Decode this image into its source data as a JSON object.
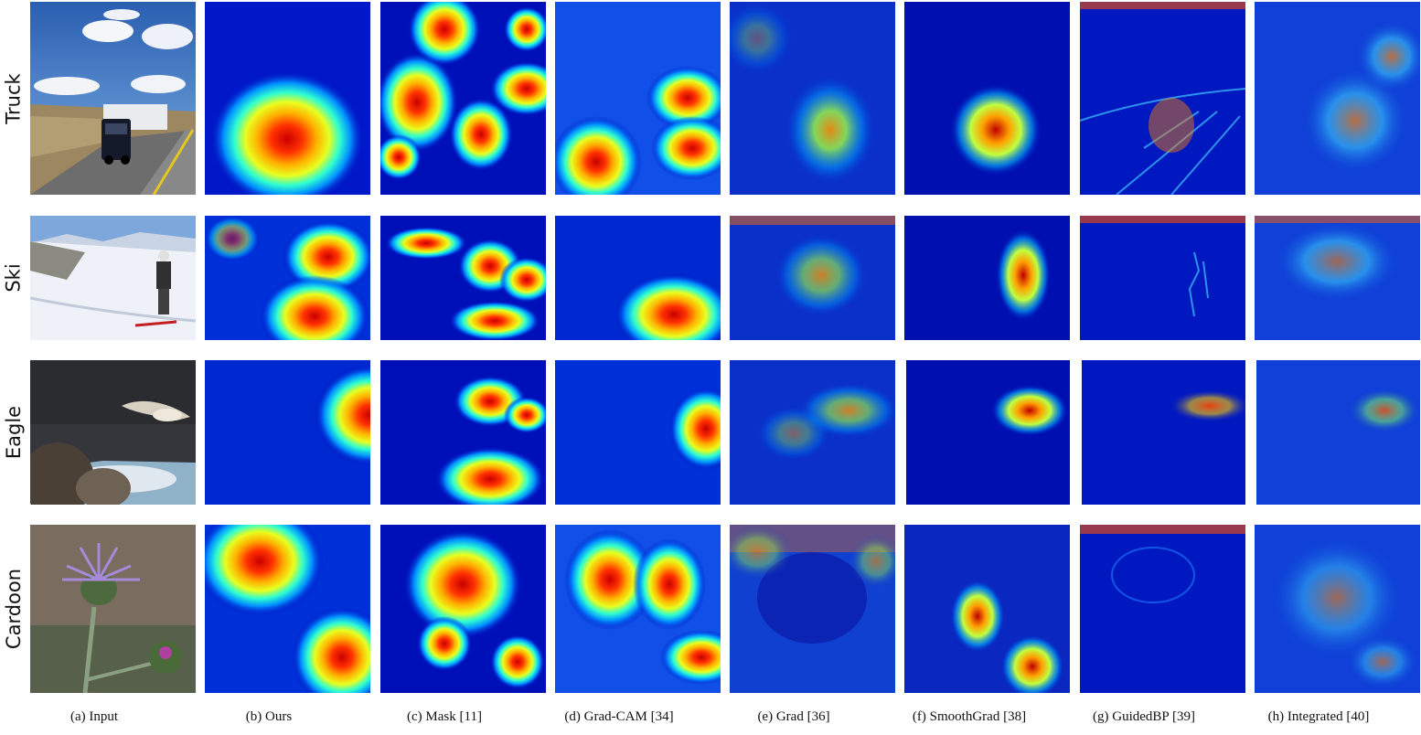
{
  "rows": [
    "Truck",
    "Ski",
    "Eagle",
    "Cardoon"
  ],
  "columns": [
    "(a) Input",
    "(b) Ours",
    "(c) Mask [11]",
    "(d) Grad-CAM [34]",
    "(e) Grad [36]",
    "(f) SmoothGrad [38]",
    "(g) GuidedBP [39]",
    "(h) Integrated [40]"
  ],
  "colors": {
    "jet_low": "#00008f",
    "jet_mid": "#00e0ff",
    "jet_high": "#e00000"
  }
}
